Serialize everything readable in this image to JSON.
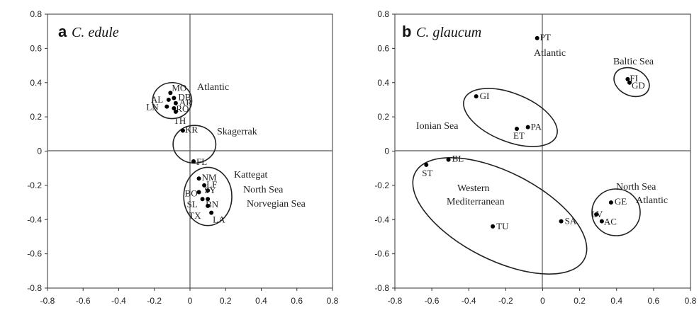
{
  "chart_data": [
    {
      "type": "scatter",
      "panel_letter": "a",
      "title": "C. edule",
      "xlim": [
        -0.8,
        0.8
      ],
      "ylim": [
        -0.8,
        0.8
      ],
      "xticks": [
        "-0.8",
        "-0.6",
        "-0.4",
        "-0.2",
        "0",
        "0.2",
        "0.4",
        "0.6",
        "0.8"
      ],
      "yticks": [
        "0.8",
        "0.6",
        "0.4",
        "0.2",
        "0",
        "-0.2",
        "-0.4",
        "-0.6",
        "-0.8"
      ],
      "points": [
        {
          "label": "MO",
          "x": -0.11,
          "y": 0.34
        },
        {
          "label": "DB",
          "x": -0.09,
          "y": 0.31
        },
        {
          "label": "AL",
          "x": -0.12,
          "y": 0.3
        },
        {
          "label": "AR",
          "x": -0.08,
          "y": 0.28
        },
        {
          "label": "LN",
          "x": -0.13,
          "y": 0.26
        },
        {
          "label": "RO",
          "x": -0.09,
          "y": 0.25
        },
        {
          "label": "TH",
          "x": -0.08,
          "y": 0.23
        },
        {
          "label": "KR",
          "x": -0.04,
          "y": 0.12
        },
        {
          "label": "FL",
          "x": 0.02,
          "y": -0.06
        },
        {
          "label": "NM",
          "x": 0.05,
          "y": -0.16
        },
        {
          "label": "LF",
          "x": 0.08,
          "y": -0.2
        },
        {
          "label": "SY",
          "x": 0.1,
          "y": -0.23
        },
        {
          "label": "BO",
          "x": 0.05,
          "y": -0.24
        },
        {
          "label": "SL",
          "x": 0.07,
          "y": -0.28
        },
        {
          "label": "BN",
          "x": 0.1,
          "y": -0.28
        },
        {
          "label": "TX",
          "x": 0.1,
          "y": -0.32
        },
        {
          "label": "LA",
          "x": 0.12,
          "y": -0.36
        }
      ],
      "groups": [
        {
          "name": "Atlantic",
          "cx": -0.1,
          "cy": 0.295,
          "rx": 0.11,
          "ry": 0.105
        },
        {
          "name": "Skagerrak",
          "cx": 0.025,
          "cy": 0.04,
          "rx": 0.12,
          "ry": 0.11
        },
        {
          "name": "Kattegat",
          "cx": 0.1,
          "cy": -0.265,
          "rx": 0.135,
          "ry": 0.17
        }
      ],
      "group_labels": [
        "Atlantic",
        "Skagerrak",
        "Kattegat",
        "North Sea",
        "Norvegian Sea"
      ]
    },
    {
      "type": "scatter",
      "panel_letter": "b",
      "title": "C. glaucum",
      "xlim": [
        -0.8,
        0.8
      ],
      "ylim": [
        -0.8,
        0.8
      ],
      "xticks": [
        "-0.8",
        "-0.6",
        "-0.4",
        "-0.2",
        "0",
        "0.2",
        "0.4",
        "0.6",
        "0.8"
      ],
      "yticks": [
        "0.8",
        "0.6",
        "0.4",
        "0.2",
        "0",
        "-0.2",
        "-0.4",
        "-0.6",
        "-0.8"
      ],
      "points": [
        {
          "label": "PT",
          "x": -0.03,
          "y": 0.66
        },
        {
          "label": "FI",
          "x": 0.46,
          "y": 0.42
        },
        {
          "label": "GD",
          "x": 0.47,
          "y": 0.4
        },
        {
          "label": "GI",
          "x": -0.36,
          "y": 0.32
        },
        {
          "label": "PA",
          "x": -0.08,
          "y": 0.14
        },
        {
          "label": "ET",
          "x": -0.14,
          "y": 0.13
        },
        {
          "label": "ST",
          "x": -0.63,
          "y": -0.08
        },
        {
          "label": "BL",
          "x": -0.51,
          "y": -0.05
        },
        {
          "label": "GE",
          "x": 0.37,
          "y": -0.3
        },
        {
          "label": "LV",
          "x": 0.29,
          "y": -0.37
        },
        {
          "label": "AC",
          "x": 0.32,
          "y": -0.41
        },
        {
          "label": "SA",
          "x": 0.1,
          "y": -0.41
        },
        {
          "label": "TU",
          "x": -0.27,
          "y": -0.44
        }
      ],
      "group_labels": [
        "Atlantic",
        "Baltic Sea",
        "Ionian Sea",
        "Western",
        "Mediterranean",
        "North Sea",
        "Atlantic"
      ]
    }
  ]
}
